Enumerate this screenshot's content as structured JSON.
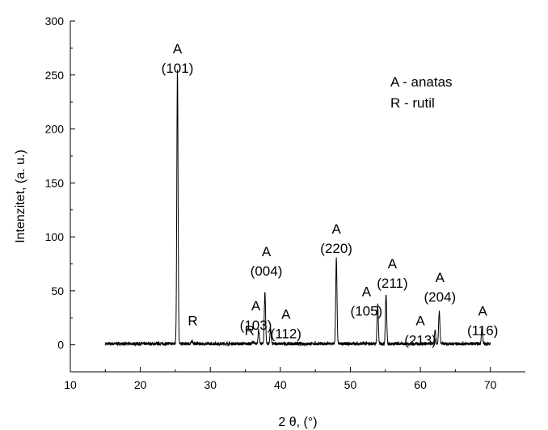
{
  "chart_data": {
    "type": "line",
    "title": "",
    "xlabel": "2 θ, (°)",
    "ylabel": "Intenzitet, (a. u.)",
    "xlim": [
      10,
      75
    ],
    "ylim": [
      -25,
      300
    ],
    "x_ticks": [
      10,
      20,
      30,
      40,
      50,
      60,
      70
    ],
    "y_ticks": [
      0,
      50,
      100,
      150,
      200,
      250,
      300
    ],
    "x_tick_labels": [
      "10",
      "20",
      "30",
      "40",
      "50",
      "60",
      "70"
    ],
    "y_tick_labels": [
      "0",
      "50",
      "100",
      "150",
      "200",
      "250",
      "300"
    ],
    "grid": false,
    "legend_text": [
      "A - anatas",
      "R - rutil"
    ],
    "series": [
      {
        "x_range": [
          15,
          70
        ],
        "baseline": 1,
        "peaks": [
          {
            "x": 25.3,
            "y": 256
          },
          {
            "x": 27.4,
            "y": 4
          },
          {
            "x": 36.1,
            "y": 3
          },
          {
            "x": 36.9,
            "y": 14
          },
          {
            "x": 37.8,
            "y": 49
          },
          {
            "x": 38.6,
            "y": 14
          },
          {
            "x": 48.0,
            "y": 80
          },
          {
            "x": 53.9,
            "y": 38
          },
          {
            "x": 55.1,
            "y": 47
          },
          {
            "x": 62.1,
            "y": 13
          },
          {
            "x": 62.7,
            "y": 31
          },
          {
            "x": 68.8,
            "y": 16
          }
        ]
      }
    ],
    "annotations": [
      {
        "lines": [
          "A",
          "(101)"
        ],
        "x": 25.3,
        "y": 270
      },
      {
        "lines": [
          "R"
        ],
        "x": 27.5,
        "y": 18
      },
      {
        "lines": [
          "A",
          "(004)"
        ],
        "x": 38.0,
        "y": 82
      },
      {
        "lines": [
          "A",
          "(103)"
        ],
        "x": 36.5,
        "y": 32
      },
      {
        "lines": [
          "R"
        ],
        "x": 35.6,
        "y": 9
      },
      {
        "lines": [
          "A",
          "(112)"
        ],
        "x": 40.8,
        "y": 24
      },
      {
        "lines": [
          "A",
          "(220)"
        ],
        "x": 48.0,
        "y": 103
      },
      {
        "lines": [
          "A",
          "(105)"
        ],
        "x": 52.3,
        "y": 45
      },
      {
        "lines": [
          "A",
          "(211)"
        ],
        "x": 56.0,
        "y": 71
      },
      {
        "lines": [
          "A",
          "(213)"
        ],
        "x": 60.0,
        "y": 18
      },
      {
        "lines": [
          "A",
          "(204)"
        ],
        "x": 62.8,
        "y": 58
      },
      {
        "lines": [
          "A",
          "(116)"
        ],
        "x": 68.9,
        "y": 27
      }
    ]
  }
}
